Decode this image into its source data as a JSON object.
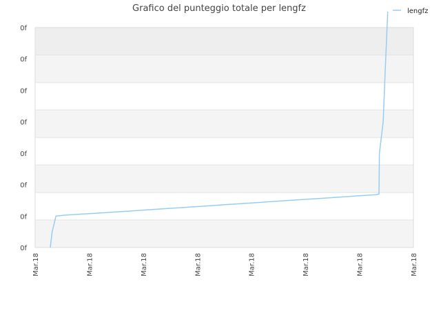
{
  "chart_data": {
    "type": "line",
    "title": "Grafico del punteggio totale per lengfz",
    "legend": {
      "placement": "top-right",
      "entries": [
        "lengfz"
      ]
    },
    "grid": true,
    "y_tick_labels": [
      "0f",
      "0f",
      "0f",
      "0f",
      "0f",
      "0f",
      "0f",
      "0f"
    ],
    "x_tick_labels": [
      "Mar.18",
      "Mar.18",
      "Mar.18",
      "Mar.18",
      "Mar.18",
      "Mar.18",
      "Mar.18",
      "Mar.18"
    ],
    "xlim": [
      0,
      1
    ],
    "ylim": [
      0,
      7
    ],
    "series": [
      {
        "name": "lengfz",
        "color": "#99ccf2",
        "points": [
          [
            0.04,
            0.0
          ],
          [
            0.045,
            0.5
          ],
          [
            0.055,
            1.0
          ],
          [
            0.08,
            1.03
          ],
          [
            0.12,
            1.06
          ],
          [
            0.16,
            1.09
          ],
          [
            0.2,
            1.12
          ],
          [
            0.25,
            1.16
          ],
          [
            0.3,
            1.2
          ],
          [
            0.35,
            1.24
          ],
          [
            0.4,
            1.28
          ],
          [
            0.45,
            1.32
          ],
          [
            0.5,
            1.36
          ],
          [
            0.55,
            1.4
          ],
          [
            0.6,
            1.44
          ],
          [
            0.65,
            1.48
          ],
          [
            0.7,
            1.52
          ],
          [
            0.75,
            1.56
          ],
          [
            0.8,
            1.6
          ],
          [
            0.86,
            1.65
          ],
          [
            0.9,
            1.68
          ],
          [
            0.909,
            1.7
          ],
          [
            0.91,
            3.0
          ],
          [
            0.92,
            4.0
          ],
          [
            0.925,
            5.5
          ],
          [
            0.932,
            7.5
          ]
        ]
      }
    ]
  }
}
